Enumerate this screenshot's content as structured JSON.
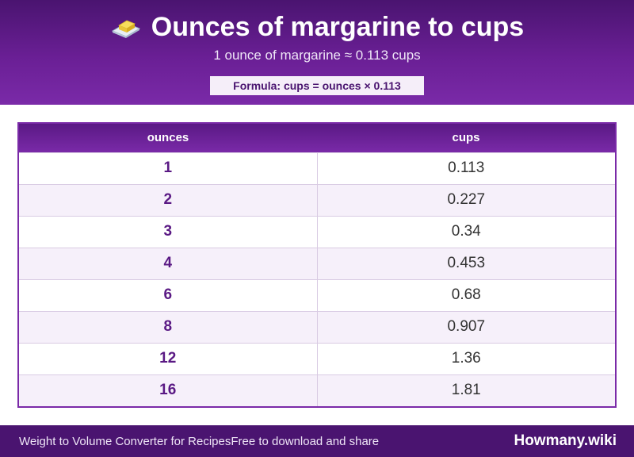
{
  "header": {
    "icon": "butter-icon",
    "title": "Ounces of margarine to cups",
    "subtitle": "1 ounce of margarine ≈ 0.113 cups",
    "formula": "Formula: cups = ounces × 0.113"
  },
  "table": {
    "columns": [
      "ounces",
      "cups"
    ],
    "rows": [
      {
        "ounces": "1",
        "cups": "0.113"
      },
      {
        "ounces": "2",
        "cups": "0.227"
      },
      {
        "ounces": "3",
        "cups": "0.34"
      },
      {
        "ounces": "4",
        "cups": "0.453"
      },
      {
        "ounces": "6",
        "cups": "0.68"
      },
      {
        "ounces": "8",
        "cups": "0.907"
      },
      {
        "ounces": "12",
        "cups": "1.36"
      },
      {
        "ounces": "16",
        "cups": "1.81"
      }
    ]
  },
  "footer": {
    "left_text_1": "Weight to Volume Converter for Recipes",
    "left_text_2": "Free to download and share",
    "brand": "Howmany.wiki"
  },
  "colors": {
    "header_dark": "#4a1470",
    "header_accent": "#7a2aa8",
    "row_alt": "#f6f0fa",
    "ounces_text": "#5a1984"
  }
}
